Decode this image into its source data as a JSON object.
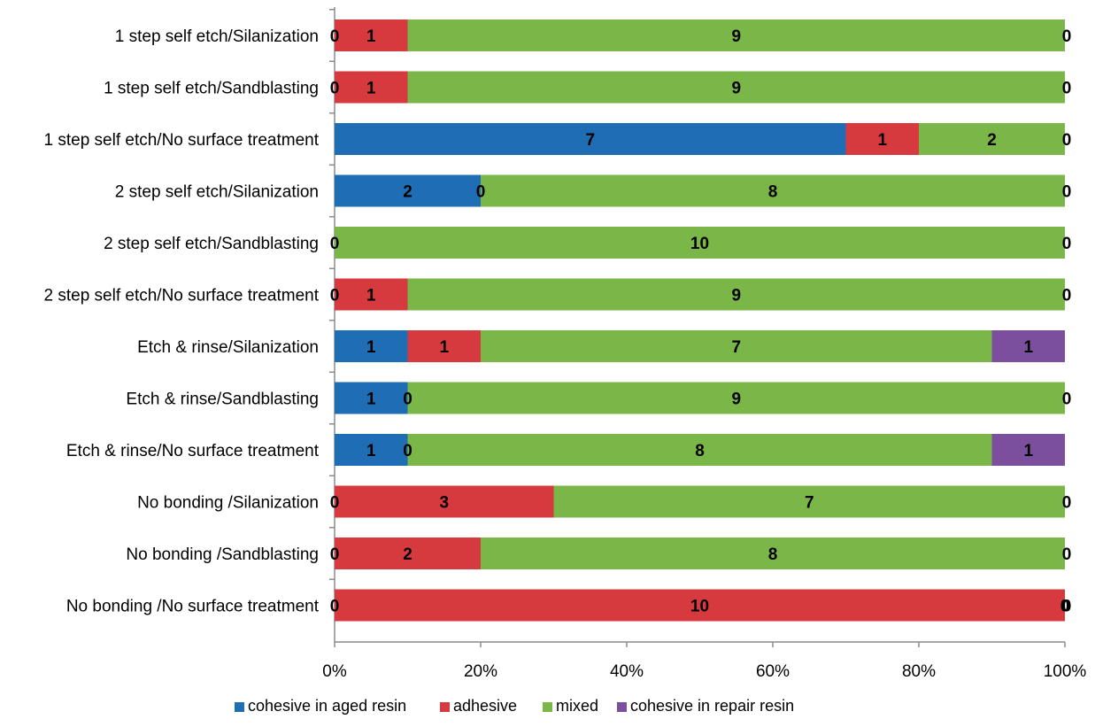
{
  "chart_data": {
    "type": "bar",
    "orientation": "horizontal",
    "stacked": "percent",
    "categories": [
      "1 step self etch/Silanization",
      "1 step self etch/Sandblasting",
      "1 step self etch/No surface treatment",
      "2 step self etch/Silanization",
      "2 step self etch/Sandblasting",
      "2 step self etch/No surface treatment",
      "Etch & rinse/Silanization",
      "Etch & rinse/Sandblasting",
      "Etch & rinse/No surface treatment",
      "No bonding /Silanization",
      "No bonding /Sandblasting",
      "No bonding /No surface treatment"
    ],
    "series": [
      {
        "name": "cohesive in aged resin",
        "color": "#1f6eb5",
        "values": [
          0,
          0,
          7,
          2,
          0,
          0,
          1,
          1,
          1,
          0,
          0,
          0
        ]
      },
      {
        "name": "adhesive",
        "color": "#d6393e",
        "values": [
          1,
          1,
          1,
          0,
          0,
          1,
          1,
          0,
          0,
          3,
          2,
          10
        ]
      },
      {
        "name": "mixed",
        "color": "#7ab648",
        "values": [
          9,
          9,
          2,
          8,
          10,
          9,
          7,
          9,
          8,
          7,
          8,
          0
        ]
      },
      {
        "name": "cohesive in repair resin",
        "color": "#7b4f9d",
        "values": [
          0,
          0,
          0,
          0,
          0,
          0,
          1,
          0,
          1,
          0,
          0,
          0
        ]
      }
    ],
    "x_ticks": [
      "0%",
      "20%",
      "40%",
      "60%",
      "80%",
      "100%"
    ],
    "xlim": [
      0,
      100
    ],
    "grid": false,
    "legend_position": "bottom",
    "title": "",
    "xlabel": "",
    "ylabel": ""
  }
}
